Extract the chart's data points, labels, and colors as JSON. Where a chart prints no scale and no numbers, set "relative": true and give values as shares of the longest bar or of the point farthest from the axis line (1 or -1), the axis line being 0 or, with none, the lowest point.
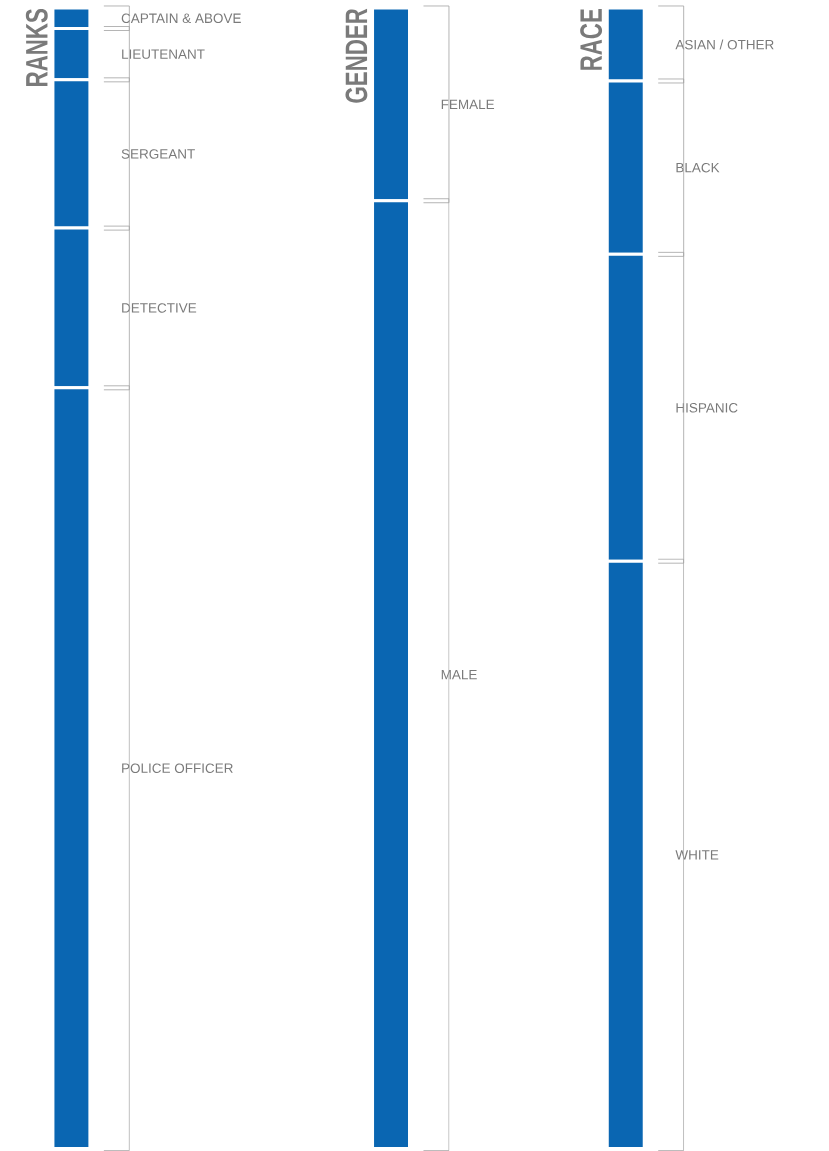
{
  "chart_data": [
    {
      "type": "bar",
      "stacked": true,
      "relative": true,
      "title": "RANKS",
      "categories": [
        null
      ],
      "series": [
        {
          "name": "POLICE OFFICER",
          "color": "#0a66b2",
          "values": [
            0.667
          ]
        },
        {
          "name": "DETECTIVE",
          "color": "#0a66b2",
          "values": [
            0.14
          ]
        },
        {
          "name": "SERGEANT",
          "color": "#0a66b2",
          "values": [
            0.13
          ]
        },
        {
          "name": "LIEUTENANT",
          "color": "#0a66b2",
          "values": [
            0.045
          ]
        },
        {
          "name": "CAPTAIN & ABOVE",
          "color": "#0a66b2",
          "values": [
            0.018
          ]
        }
      ]
    },
    {
      "type": "bar",
      "stacked": true,
      "relative": true,
      "title": "GENDER",
      "categories": [
        null
      ],
      "series": [
        {
          "name": "MALE",
          "color": "#0a66b2",
          "values": [
            0.831
          ]
        },
        {
          "name": "FEMALE",
          "color": "#0a66b2",
          "values": [
            0.169
          ]
        }
      ]
    },
    {
      "type": "bar",
      "stacked": true,
      "relative": true,
      "title": "RACE",
      "categories": [
        null
      ],
      "series": [
        {
          "name": "WHITE",
          "color": "#0a66b2",
          "values": [
            0.515
          ]
        },
        {
          "name": "HISPANIC",
          "color": "#0a66b2",
          "values": [
            0.269
          ]
        },
        {
          "name": "BLACK",
          "color": "#0a66b2",
          "values": [
            0.152
          ]
        },
        {
          "name": "ASIAN / OTHER",
          "color": "#0a66b2",
          "values": [
            0.064
          ]
        }
      ]
    }
  ]
}
